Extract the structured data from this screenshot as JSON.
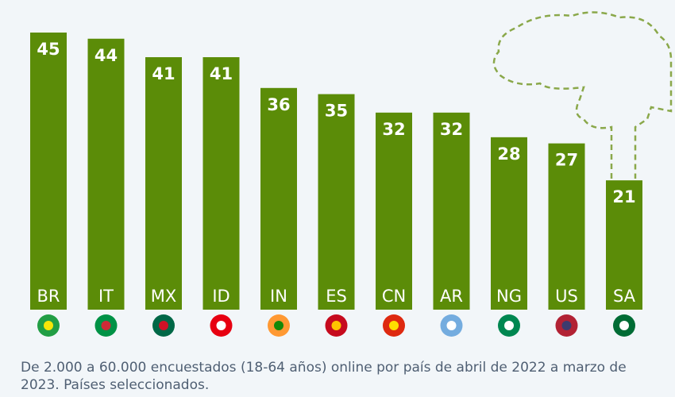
{
  "chart_data": {
    "type": "bar",
    "categories": [
      "BR",
      "IT",
      "MX",
      "ID",
      "IN",
      "ES",
      "CN",
      "AR",
      "NG",
      "US",
      "SA"
    ],
    "values": [
      45,
      44,
      41,
      41,
      36,
      35,
      32,
      32,
      28,
      27,
      21
    ],
    "ylim": [
      0,
      45
    ],
    "grid": false,
    "flag_icons": [
      "brazil-flag-icon",
      "italy-flag-icon",
      "mexico-flag-icon",
      "indonesia-flag-icon",
      "india-flag-icon",
      "spain-flag-icon",
      "china-flag-icon",
      "argentina-flag-icon",
      "nigeria-flag-icon",
      "usa-flag-icon",
      "saudi-arabia-flag-icon"
    ]
  },
  "colors": {
    "bar": "#5b8c08",
    "text": "#ffffff",
    "note": "#4f5f73",
    "tree": "#8aa84a"
  },
  "footnote": "De 2.000 a 60.000 encuestados (18-64 años) online por país de abril de 2022 a marzo de 2023. Países seleccionados."
}
